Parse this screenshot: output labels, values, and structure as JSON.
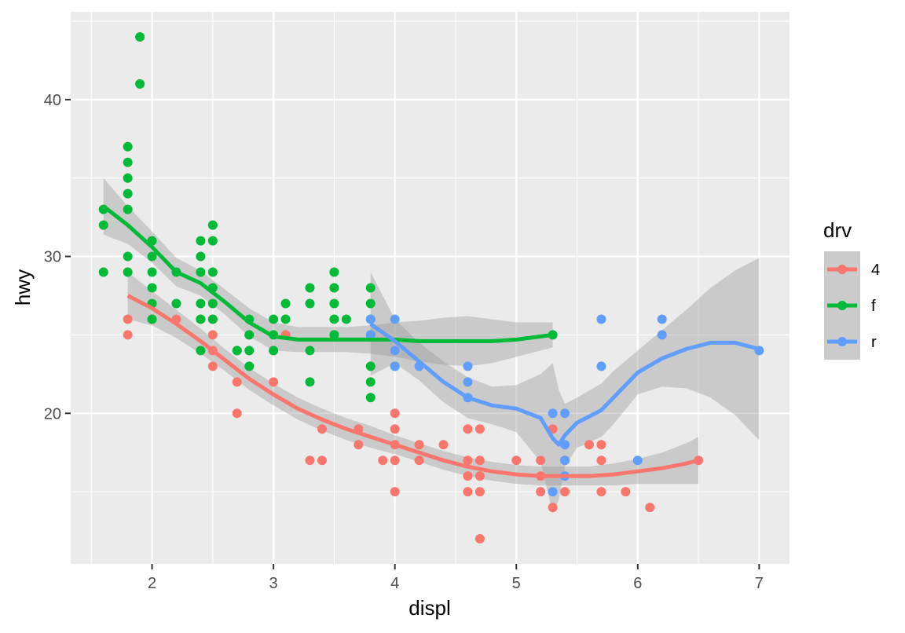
{
  "chart_data": {
    "type": "scatter",
    "xlabel": "displ",
    "ylabel": "hwy",
    "xlim": [
      1.33,
      7.25
    ],
    "ylim": [
      10.4,
      45.6
    ],
    "x_ticks": [
      2,
      3,
      4,
      5,
      6,
      7
    ],
    "y_ticks": [
      20,
      30,
      40
    ],
    "grid": true,
    "legend": {
      "title": "drv",
      "position": "right",
      "entries": [
        "4",
        "f",
        "r"
      ]
    },
    "colors": {
      "4": "#F8766D",
      "f": "#00BA38",
      "r": "#619CFF",
      "ribbon": "#999999",
      "panel": "#EBEBEB",
      "grid": "#FFFFFF"
    },
    "series": [
      {
        "name": "4",
        "points": [
          [
            1.8,
            26
          ],
          [
            1.8,
            25
          ],
          [
            2.0,
            26
          ],
          [
            2.2,
            26
          ],
          [
            2.4,
            26
          ],
          [
            2.5,
            27
          ],
          [
            2.5,
            26
          ],
          [
            2.5,
            25
          ],
          [
            2.5,
            24
          ],
          [
            2.5,
            23
          ],
          [
            2.7,
            24
          ],
          [
            2.7,
            22
          ],
          [
            2.7,
            20
          ],
          [
            2.8,
            25
          ],
          [
            3.0,
            22
          ],
          [
            3.1,
            25
          ],
          [
            3.3,
            17
          ],
          [
            3.4,
            19
          ],
          [
            3.4,
            17
          ],
          [
            3.7,
            19
          ],
          [
            3.7,
            18
          ],
          [
            3.9,
            17
          ],
          [
            4.0,
            20
          ],
          [
            4.0,
            19
          ],
          [
            4.0,
            18
          ],
          [
            4.0,
            17
          ],
          [
            4.0,
            15
          ],
          [
            4.2,
            18
          ],
          [
            4.2,
            17
          ],
          [
            4.4,
            18
          ],
          [
            4.6,
            19
          ],
          [
            4.6,
            17
          ],
          [
            4.6,
            16
          ],
          [
            4.6,
            15
          ],
          [
            4.7,
            19
          ],
          [
            4.7,
            17
          ],
          [
            4.7,
            16
          ],
          [
            4.7,
            15
          ],
          [
            4.7,
            12
          ],
          [
            5.0,
            17
          ],
          [
            5.2,
            17
          ],
          [
            5.2,
            16
          ],
          [
            5.2,
            15
          ],
          [
            5.3,
            19
          ],
          [
            5.3,
            14
          ],
          [
            5.4,
            17
          ],
          [
            5.4,
            15
          ],
          [
            5.6,
            18
          ],
          [
            5.7,
            18
          ],
          [
            5.7,
            17
          ],
          [
            5.7,
            15
          ],
          [
            5.9,
            15
          ],
          [
            6.1,
            14
          ],
          [
            6.5,
            17
          ]
        ],
        "smooth": [
          [
            1.8,
            27.5
          ],
          [
            2.0,
            26.7
          ],
          [
            2.2,
            25.7
          ],
          [
            2.4,
            24.6
          ],
          [
            2.6,
            23.4
          ],
          [
            2.8,
            22.2
          ],
          [
            3.0,
            21.2
          ],
          [
            3.2,
            20.3
          ],
          [
            3.4,
            19.6
          ],
          [
            3.6,
            19.0
          ],
          [
            3.8,
            18.5
          ],
          [
            4.0,
            18.0
          ],
          [
            4.2,
            17.5
          ],
          [
            4.4,
            17.0
          ],
          [
            4.6,
            16.6
          ],
          [
            4.8,
            16.3
          ],
          [
            5.0,
            16.1
          ],
          [
            5.2,
            16.0
          ],
          [
            5.4,
            16.0
          ],
          [
            5.6,
            16.0
          ],
          [
            5.8,
            16.1
          ],
          [
            6.0,
            16.3
          ],
          [
            6.2,
            16.5
          ],
          [
            6.4,
            16.8
          ],
          [
            6.5,
            17.0
          ]
        ],
        "se": [
          1.5,
          1.1,
          0.9,
          0.8,
          0.7,
          0.7,
          0.7,
          0.7,
          0.7,
          0.7,
          0.7,
          0.6,
          0.6,
          0.6,
          0.6,
          0.6,
          0.6,
          0.6,
          0.6,
          0.6,
          0.7,
          0.8,
          1.0,
          1.3,
          1.5
        ]
      },
      {
        "name": "f",
        "points": [
          [
            1.6,
            33
          ],
          [
            1.6,
            32
          ],
          [
            1.6,
            29
          ],
          [
            1.8,
            37
          ],
          [
            1.8,
            36
          ],
          [
            1.8,
            35
          ],
          [
            1.8,
            34
          ],
          [
            1.8,
            33
          ],
          [
            1.8,
            30
          ],
          [
            1.8,
            29
          ],
          [
            1.9,
            44
          ],
          [
            1.9,
            41
          ],
          [
            2.0,
            31
          ],
          [
            2.0,
            30
          ],
          [
            2.0,
            29
          ],
          [
            2.0,
            28
          ],
          [
            2.0,
            27
          ],
          [
            2.0,
            26
          ],
          [
            2.2,
            29
          ],
          [
            2.2,
            27
          ],
          [
            2.4,
            31
          ],
          [
            2.4,
            30
          ],
          [
            2.4,
            29
          ],
          [
            2.4,
            27
          ],
          [
            2.4,
            26
          ],
          [
            2.4,
            24
          ],
          [
            2.5,
            32
          ],
          [
            2.5,
            31
          ],
          [
            2.5,
            29
          ],
          [
            2.5,
            28
          ],
          [
            2.5,
            27
          ],
          [
            2.5,
            26
          ],
          [
            2.7,
            24
          ],
          [
            2.8,
            26
          ],
          [
            2.8,
            25
          ],
          [
            2.8,
            24
          ],
          [
            2.8,
            23
          ],
          [
            3.0,
            26
          ],
          [
            3.0,
            25
          ],
          [
            3.0,
            24
          ],
          [
            3.1,
            27
          ],
          [
            3.1,
            26
          ],
          [
            3.3,
            28
          ],
          [
            3.3,
            27
          ],
          [
            3.3,
            24
          ],
          [
            3.3,
            22
          ],
          [
            3.5,
            29
          ],
          [
            3.5,
            28
          ],
          [
            3.5,
            27
          ],
          [
            3.5,
            26
          ],
          [
            3.5,
            25
          ],
          [
            3.6,
            26
          ],
          [
            3.8,
            28
          ],
          [
            3.8,
            27
          ],
          [
            3.8,
            26
          ],
          [
            3.8,
            25
          ],
          [
            3.8,
            23
          ],
          [
            3.8,
            22
          ],
          [
            3.8,
            21
          ],
          [
            4.0,
            23
          ],
          [
            5.3,
            25
          ]
        ],
        "smooth": [
          [
            1.6,
            33.2
          ],
          [
            1.8,
            32.0
          ],
          [
            2.0,
            30.6
          ],
          [
            2.2,
            29.0
          ],
          [
            2.4,
            28.3
          ],
          [
            2.6,
            27.1
          ],
          [
            2.8,
            25.8
          ],
          [
            3.0,
            24.9
          ],
          [
            3.2,
            24.7
          ],
          [
            3.4,
            24.7
          ],
          [
            3.6,
            24.7
          ],
          [
            3.8,
            24.7
          ],
          [
            4.0,
            24.7
          ],
          [
            4.2,
            24.6
          ],
          [
            4.4,
            24.6
          ],
          [
            4.6,
            24.6
          ],
          [
            4.8,
            24.6
          ],
          [
            5.0,
            24.7
          ],
          [
            5.2,
            24.9
          ],
          [
            5.3,
            25.0
          ]
        ],
        "se": [
          1.8,
          1.2,
          1.0,
          0.9,
          0.8,
          0.8,
          0.9,
          0.9,
          0.8,
          0.8,
          0.8,
          0.9,
          1.1,
          1.3,
          1.5,
          1.6,
          1.4,
          1.1,
          0.9,
          0.8
        ]
      },
      {
        "name": "r",
        "points": [
          [
            3.8,
            26
          ],
          [
            3.8,
            25
          ],
          [
            4.0,
            26
          ],
          [
            4.0,
            24
          ],
          [
            4.0,
            23
          ],
          [
            4.2,
            23
          ],
          [
            4.6,
            23
          ],
          [
            4.6,
            22
          ],
          [
            4.6,
            21
          ],
          [
            5.3,
            20
          ],
          [
            5.3,
            15
          ],
          [
            5.4,
            20
          ],
          [
            5.4,
            18
          ],
          [
            5.4,
            17
          ],
          [
            5.4,
            16
          ],
          [
            5.7,
            26
          ],
          [
            5.7,
            23
          ],
          [
            6.0,
            17
          ],
          [
            6.2,
            26
          ],
          [
            6.2,
            25
          ],
          [
            7.0,
            24
          ]
        ],
        "smooth": [
          [
            3.8,
            25.7
          ],
          [
            4.0,
            24.6
          ],
          [
            4.2,
            23.3
          ],
          [
            4.4,
            22.0
          ],
          [
            4.6,
            21.0
          ],
          [
            4.8,
            20.5
          ],
          [
            5.0,
            20.3
          ],
          [
            5.2,
            19.7
          ],
          [
            5.3,
            18.4
          ],
          [
            5.35,
            18.0
          ],
          [
            5.4,
            18.6
          ],
          [
            5.5,
            19.4
          ],
          [
            5.7,
            20.2
          ],
          [
            5.8,
            21.0
          ],
          [
            6.0,
            22.6
          ],
          [
            6.2,
            23.5
          ],
          [
            6.4,
            24.1
          ],
          [
            6.6,
            24.5
          ],
          [
            6.8,
            24.5
          ],
          [
            7.0,
            24.1
          ]
        ],
        "se": [
          3.3,
          1.4,
          1.2,
          1.3,
          1.3,
          1.2,
          1.5,
          2.8,
          4.8,
          3.5,
          2.0,
          1.6,
          1.7,
          1.7,
          1.4,
          1.8,
          2.5,
          3.5,
          4.6,
          5.8
        ]
      }
    ]
  }
}
